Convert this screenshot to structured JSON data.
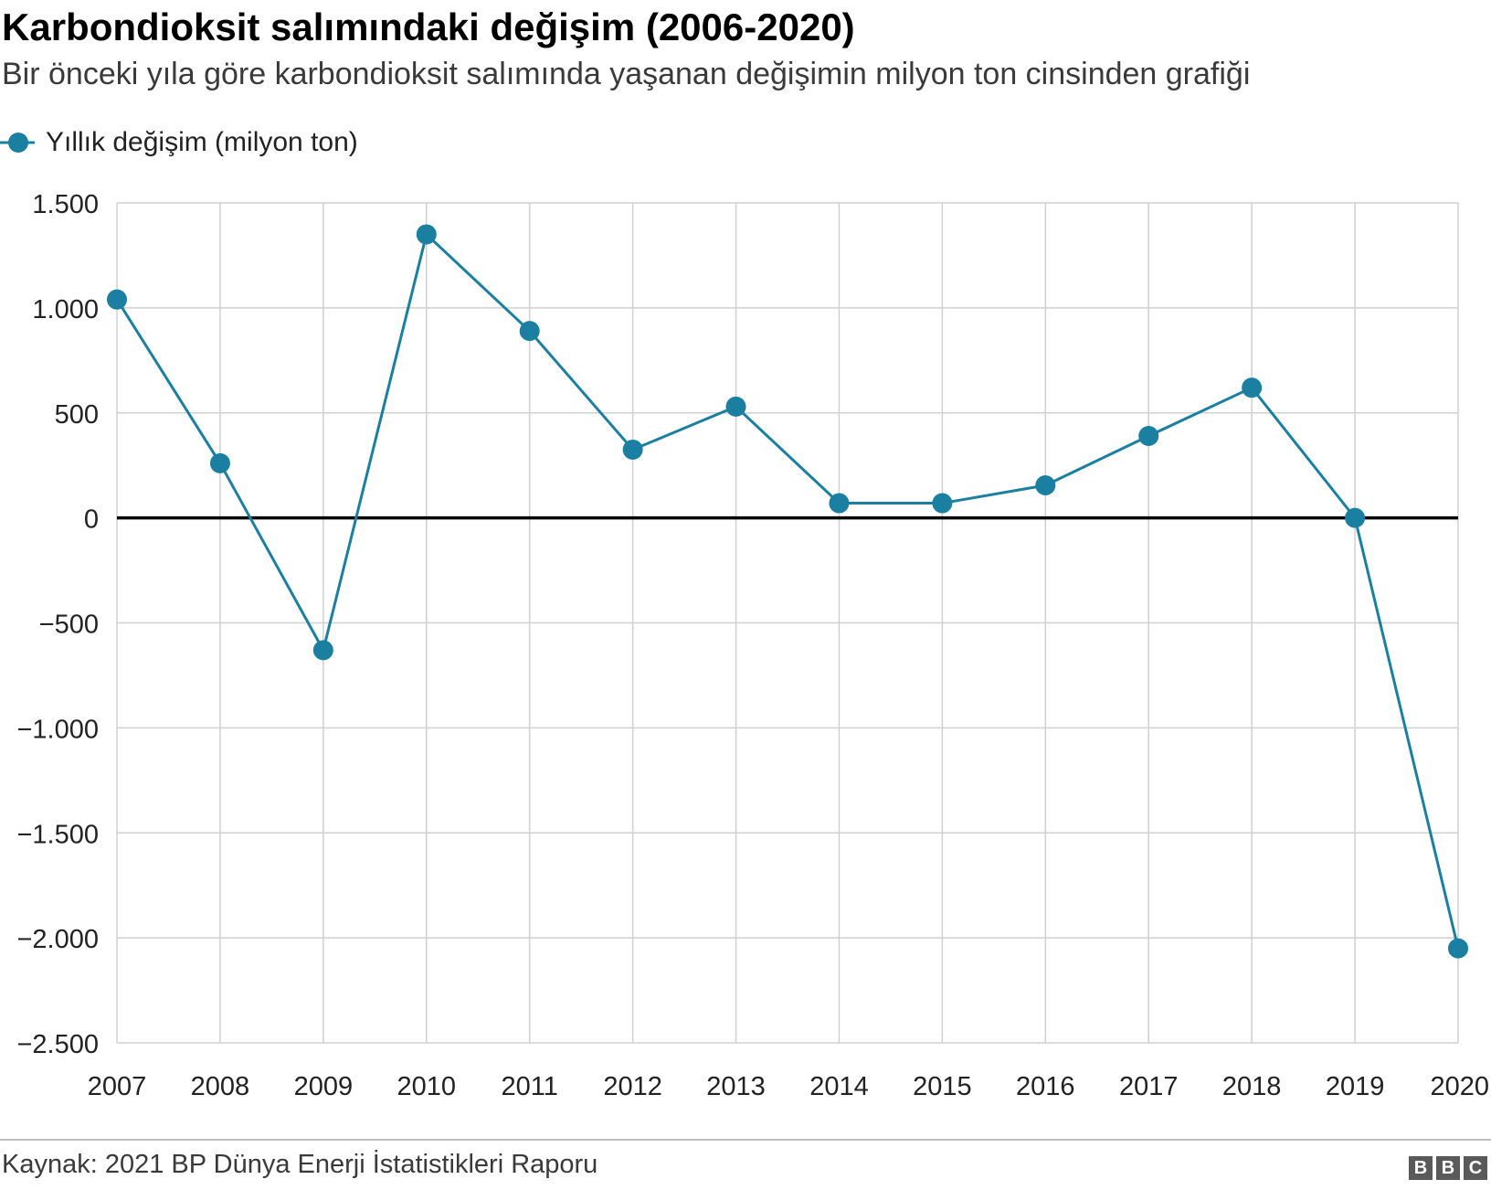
{
  "header": {
    "title": "Karbondioksit salımındaki değişim (2006-2020)",
    "subtitle": "Bir önceki yıla göre karbondioksit salımında yaşanan değişimin milyon ton cinsinden grafiği"
  },
  "legend": {
    "label": "Yıllık değişim (milyon ton)"
  },
  "footer": {
    "source": "Kaynak: 2021 BP Dünya Enerji İstatistikleri Raporu",
    "logo_letters": [
      "B",
      "B",
      "C"
    ]
  },
  "colors": {
    "series": "#1a7fa0",
    "grid": "#d0d0d0",
    "zero_line": "#000000"
  },
  "chart_data": {
    "type": "line",
    "x": [
      "2007",
      "2008",
      "2009",
      "2010",
      "2011",
      "2012",
      "2013",
      "2014",
      "2015",
      "2016",
      "2017",
      "2018",
      "2019",
      "2020"
    ],
    "series": [
      {
        "name": "Yıllık değişim (milyon ton)",
        "values": [
          1040,
          260,
          -630,
          1350,
          890,
          325,
          530,
          70,
          70,
          155,
          390,
          620,
          0,
          -2050
        ]
      }
    ],
    "ylim": [
      -2500,
      1500
    ],
    "yticks": [
      1500,
      1000,
      500,
      0,
      -500,
      -1000,
      -1500,
      -2000,
      -2500
    ],
    "ytick_labels": [
      "1.500",
      "1.000",
      "500",
      "0",
      "−500",
      "−1.000",
      "−1.500",
      "−2.000",
      "−2.500"
    ],
    "grid": true,
    "legend_position": "top-left"
  }
}
